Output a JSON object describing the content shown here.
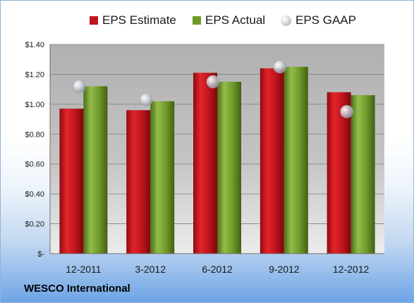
{
  "chart_data": {
    "type": "bar",
    "categories": [
      "12-2011",
      "3-2012",
      "6-2012",
      "9-2012",
      "12-2012"
    ],
    "series": [
      {
        "name": "EPS Estimate",
        "kind": "bar",
        "color": "#c0141c",
        "values": [
          0.97,
          0.96,
          1.21,
          1.24,
          1.08
        ]
      },
      {
        "name": "EPS Actual",
        "kind": "bar",
        "color": "#6f9a2a",
        "values": [
          1.12,
          1.02,
          1.15,
          1.25,
          1.06
        ]
      },
      {
        "name": "EPS GAAP",
        "kind": "marker",
        "color": "#c9cdd3",
        "values": [
          1.12,
          1.03,
          1.15,
          1.25,
          0.95
        ]
      }
    ],
    "yticks": [
      "$-",
      "$0.20",
      "$0.40",
      "$0.60",
      "$0.80",
      "$1.00",
      "$1.20",
      "$1.40"
    ],
    "ylim": [
      0,
      1.4
    ],
    "grid": true,
    "legend": "top"
  },
  "footer": {
    "company": "WESCO International"
  }
}
